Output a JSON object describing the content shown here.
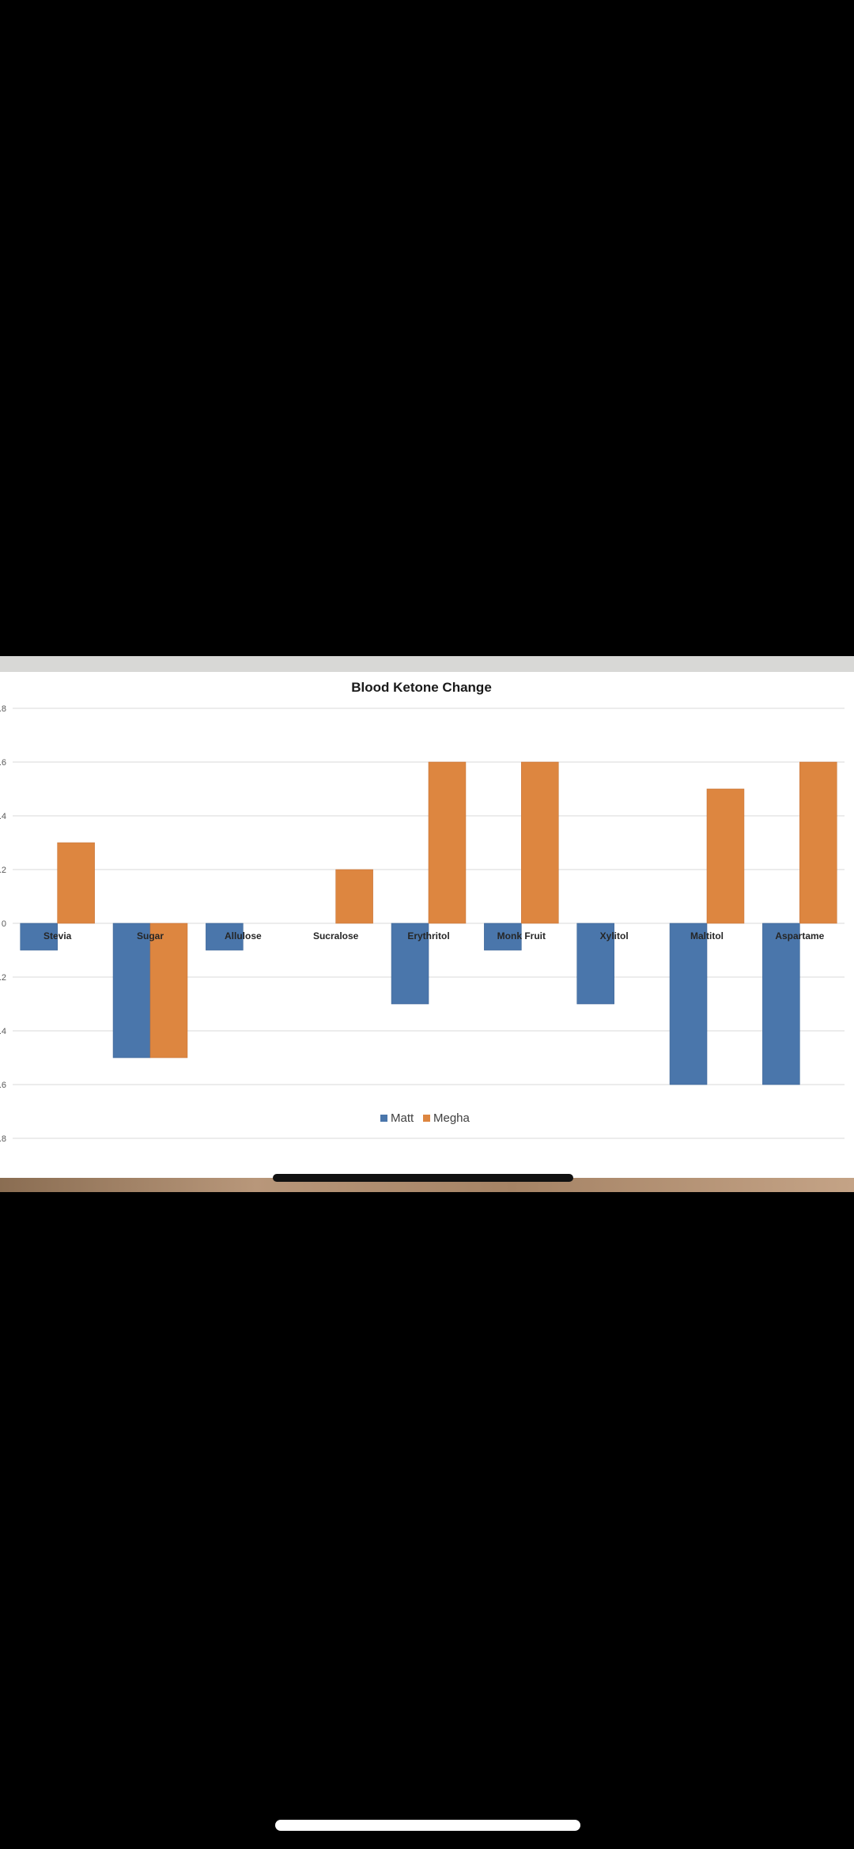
{
  "colors": {
    "series_matt": "#4a76ab",
    "series_megha": "#dd8640",
    "gridline": "#d9d9d9",
    "background": "#000000"
  },
  "chart_data": {
    "type": "bar",
    "title": "Blood Ketone Change",
    "xlabel": "",
    "ylabel": "",
    "ylim": [
      -0.8,
      0.8
    ],
    "grid": true,
    "legend_position": "bottom",
    "y_ticks": [
      0.8,
      0.6,
      0.4,
      0.2,
      0,
      -0.2,
      -0.4,
      -0.6,
      -0.8
    ],
    "y_tick_labels": [
      ".8",
      ".6",
      ".4",
      ".2",
      "0",
      ".2",
      ".4",
      ".6",
      ".8"
    ],
    "categories": [
      "Stevia",
      "Sugar",
      "Allulose",
      "Sucralose",
      "Erythritol",
      "Monk Fruit",
      "Xylitol",
      "Maltitol",
      "Aspartame"
    ],
    "series": [
      {
        "name": "Matt",
        "color": "#4a76ab",
        "values": [
          -0.1,
          -0.5,
          -0.1,
          0,
          -0.3,
          -0.1,
          -0.3,
          -0.6,
          -0.6
        ]
      },
      {
        "name": "Megha",
        "color": "#dd8640",
        "values": [
          0.3,
          -0.5,
          0,
          0.2,
          0.6,
          0.6,
          0,
          0.5,
          0.6
        ]
      }
    ]
  }
}
